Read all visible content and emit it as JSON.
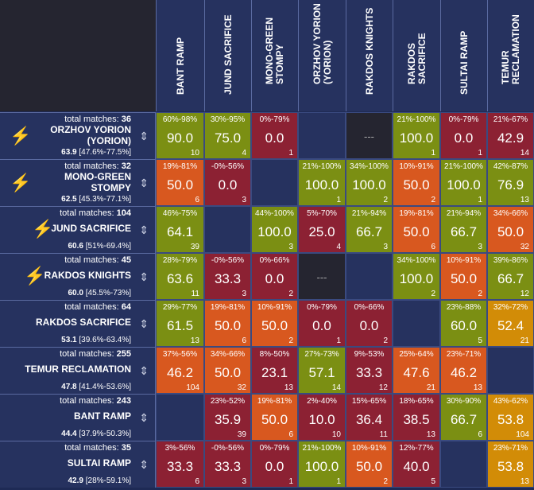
{
  "colors": {
    "corner": "#252530",
    "header": "#26325f",
    "empty": "#26325f",
    "mirror": "#252530",
    "bolt": "#f3b31b"
  },
  "columns": [
    {
      "key": "bant",
      "label": "Bant Ramp"
    },
    {
      "key": "jund",
      "label": "Jund Sacrifice"
    },
    {
      "key": "mono",
      "label": "Mono-Green\nStompy"
    },
    {
      "key": "orzhov",
      "label": "Orzhov Yorion\n(Yorion)"
    },
    {
      "key": "rakdosk",
      "label": "Rakdos Knights"
    },
    {
      "key": "rakdoss",
      "label": "Rakdos\nSacrifice"
    },
    {
      "key": "sultai",
      "label": "Sultai Ramp"
    },
    {
      "key": "temur",
      "label": "Temur\nReclamation"
    }
  ],
  "rows": [
    {
      "label": "Orzhov Yorion\n(Yorion)",
      "matches_label": "total matches:",
      "matches": "36",
      "score": "63.9",
      "range": "[47.6%-77.5%]",
      "bolt": true,
      "sort_icon": "sort-icon",
      "cells": [
        {
          "ci": "60%-98%",
          "wr": "90.0",
          "n": "10",
          "color": "#7b8f13"
        },
        {
          "ci": "30%-95%",
          "wr": "75.0",
          "n": "4",
          "color": "#7b8f13"
        },
        {
          "ci": "0%-79%",
          "wr": "0.0",
          "n": "1",
          "color": "#8c2133"
        },
        {
          "empty": true
        },
        {
          "mirror": true,
          "text": "---"
        },
        {
          "ci": "21%-100%",
          "wr": "100.0",
          "n": "1",
          "color": "#7b8f13"
        },
        {
          "ci": "0%-79%",
          "wr": "0.0",
          "n": "1",
          "color": "#8c2133"
        },
        {
          "ci": "21%-67%",
          "wr": "42.9",
          "n": "14",
          "color": "#8c2133"
        }
      ]
    },
    {
      "label": "Mono-Green\nStompy",
      "matches_label": "total matches:",
      "matches": "32",
      "score": "62.5",
      "range": "[45.3%-77.1%]",
      "bolt": true,
      "sort_icon": "sort-icon",
      "cells": [
        {
          "ci": "19%-81%",
          "wr": "50.0",
          "n": "6",
          "color": "#d8581f"
        },
        {
          "ci": "-0%-56%",
          "wr": "0.0",
          "n": "3",
          "color": "#8c2133"
        },
        {
          "empty": true
        },
        {
          "ci": "21%-100%",
          "wr": "100.0",
          "n": "1",
          "color": "#7b8f13"
        },
        {
          "ci": "34%-100%",
          "wr": "100.0",
          "n": "2",
          "color": "#7b8f13"
        },
        {
          "ci": "10%-91%",
          "wr": "50.0",
          "n": "2",
          "color": "#d8581f"
        },
        {
          "ci": "21%-100%",
          "wr": "100.0",
          "n": "1",
          "color": "#7b8f13"
        },
        {
          "ci": "42%-87%",
          "wr": "76.9",
          "n": "13",
          "color": "#7b8f13"
        }
      ]
    },
    {
      "label": "Jund Sacrifice",
      "matches_label": "total matches:",
      "matches": "104",
      "score": "60.6",
      "range": "[51%-69.4%]",
      "bolt": true,
      "sort_icon": "sort-icon",
      "cells": [
        {
          "ci": "46%-75%",
          "wr": "64.1",
          "n": "39",
          "color": "#7b8f13"
        },
        {
          "empty": true
        },
        {
          "ci": "44%-100%",
          "wr": "100.0",
          "n": "3",
          "color": "#7b8f13"
        },
        {
          "ci": "5%-70%",
          "wr": "25.0",
          "n": "4",
          "color": "#8c2133"
        },
        {
          "ci": "21%-94%",
          "wr": "66.7",
          "n": "3",
          "color": "#7b8f13"
        },
        {
          "ci": "19%-81%",
          "wr": "50.0",
          "n": "6",
          "color": "#d8581f"
        },
        {
          "ci": "21%-94%",
          "wr": "66.7",
          "n": "3",
          "color": "#7b8f13"
        },
        {
          "ci": "34%-66%",
          "wr": "50.0",
          "n": "32",
          "color": "#d8581f"
        }
      ]
    },
    {
      "label": "Rakdos Knights",
      "matches_label": "total matches:",
      "matches": "45",
      "score": "60.0",
      "range": "[45.5%-73%]",
      "bolt": true,
      "sort_icon": "sort-icon",
      "cells": [
        {
          "ci": "28%-79%",
          "wr": "63.6",
          "n": "11",
          "color": "#7b8f13"
        },
        {
          "ci": "-0%-56%",
          "wr": "33.3",
          "n": "3",
          "color": "#8c2133"
        },
        {
          "ci": "0%-66%",
          "wr": "0.0",
          "n": "2",
          "color": "#8c2133"
        },
        {
          "mirror": true,
          "text": "---"
        },
        {
          "empty": true
        },
        {
          "ci": "34%-100%",
          "wr": "100.0",
          "n": "2",
          "color": "#7b8f13"
        },
        {
          "ci": "10%-91%",
          "wr": "50.0",
          "n": "2",
          "color": "#d8581f"
        },
        {
          "ci": "39%-86%",
          "wr": "66.7",
          "n": "12",
          "color": "#7b8f13"
        }
      ]
    },
    {
      "label": "Rakdos Sacrifice",
      "matches_label": "total matches:",
      "matches": "64",
      "score": "53.1",
      "range": "[39.6%-63.4%]",
      "bolt": false,
      "sort_icon": "sort-icon",
      "cells": [
        {
          "ci": "29%-77%",
          "wr": "61.5",
          "n": "13",
          "color": "#7b8f13"
        },
        {
          "ci": "19%-81%",
          "wr": "50.0",
          "n": "6",
          "color": "#d8581f"
        },
        {
          "ci": "10%-91%",
          "wr": "50.0",
          "n": "2",
          "color": "#d8581f"
        },
        {
          "ci": "0%-79%",
          "wr": "0.0",
          "n": "1",
          "color": "#8c2133"
        },
        {
          "ci": "0%-66%",
          "wr": "0.0",
          "n": "2",
          "color": "#8c2133"
        },
        {
          "empty": true
        },
        {
          "ci": "23%-88%",
          "wr": "60.0",
          "n": "5",
          "color": "#7b8f13"
        },
        {
          "ci": "32%-72%",
          "wr": "52.4",
          "n": "21",
          "color": "#d28c07"
        }
      ]
    },
    {
      "label": "Temur Reclamation",
      "matches_label": "total matches:",
      "matches": "255",
      "score": "47.8",
      "range": "[41.4%-53.6%]",
      "bolt": false,
      "sort_icon": "sort-icon",
      "cells": [
        {
          "ci": "37%-56%",
          "wr": "46.2",
          "n": "104",
          "color": "#d8581f"
        },
        {
          "ci": "34%-66%",
          "wr": "50.0",
          "n": "32",
          "color": "#d8581f"
        },
        {
          "ci": "8%-50%",
          "wr": "23.1",
          "n": "13",
          "color": "#8c2133"
        },
        {
          "ci": "27%-73%",
          "wr": "57.1",
          "n": "14",
          "color": "#7b8f13"
        },
        {
          "ci": "9%-53%",
          "wr": "33.3",
          "n": "12",
          "color": "#8c2133"
        },
        {
          "ci": "25%-64%",
          "wr": "47.6",
          "n": "21",
          "color": "#d8581f"
        },
        {
          "ci": "23%-71%",
          "wr": "46.2",
          "n": "13",
          "color": "#d8581f"
        },
        {
          "empty": true
        }
      ]
    },
    {
      "label": "Bant Ramp",
      "matches_label": "total matches:",
      "matches": "243",
      "score": "44.4",
      "range": "[37.9%-50.3%]",
      "bolt": false,
      "sort_icon": "sort-icon",
      "cells": [
        {
          "empty": true
        },
        {
          "ci": "23%-52%",
          "wr": "35.9",
          "n": "39",
          "color": "#8c2133"
        },
        {
          "ci": "19%-81%",
          "wr": "50.0",
          "n": "6",
          "color": "#d8581f"
        },
        {
          "ci": "2%-40%",
          "wr": "10.0",
          "n": "10",
          "color": "#8c2133"
        },
        {
          "ci": "15%-65%",
          "wr": "36.4",
          "n": "11",
          "color": "#8c2133"
        },
        {
          "ci": "18%-65%",
          "wr": "38.5",
          "n": "13",
          "color": "#8c2133"
        },
        {
          "ci": "30%-90%",
          "wr": "66.7",
          "n": "6",
          "color": "#7b8f13"
        },
        {
          "ci": "43%-62%",
          "wr": "53.8",
          "n": "104",
          "color": "#d28c07"
        }
      ]
    },
    {
      "label": "Sultai Ramp",
      "matches_label": "total matches:",
      "matches": "35",
      "score": "42.9",
      "range": "[28%-59.1%]",
      "bolt": false,
      "sort_icon": "sort-icon",
      "cells": [
        {
          "ci": "3%-56%",
          "wr": "33.3",
          "n": "6",
          "color": "#8c2133"
        },
        {
          "ci": "-0%-56%",
          "wr": "33.3",
          "n": "3",
          "color": "#8c2133"
        },
        {
          "ci": "0%-79%",
          "wr": "0.0",
          "n": "1",
          "color": "#8c2133"
        },
        {
          "ci": "21%-100%",
          "wr": "100.0",
          "n": "1",
          "color": "#7b8f13"
        },
        {
          "ci": "10%-91%",
          "wr": "50.0",
          "n": "2",
          "color": "#d8581f"
        },
        {
          "ci": "12%-77%",
          "wr": "40.0",
          "n": "5",
          "color": "#8c2133"
        },
        {
          "empty": true
        },
        {
          "ci": "23%-71%",
          "wr": "53.8",
          "n": "13",
          "color": "#d28c07"
        }
      ]
    }
  ]
}
